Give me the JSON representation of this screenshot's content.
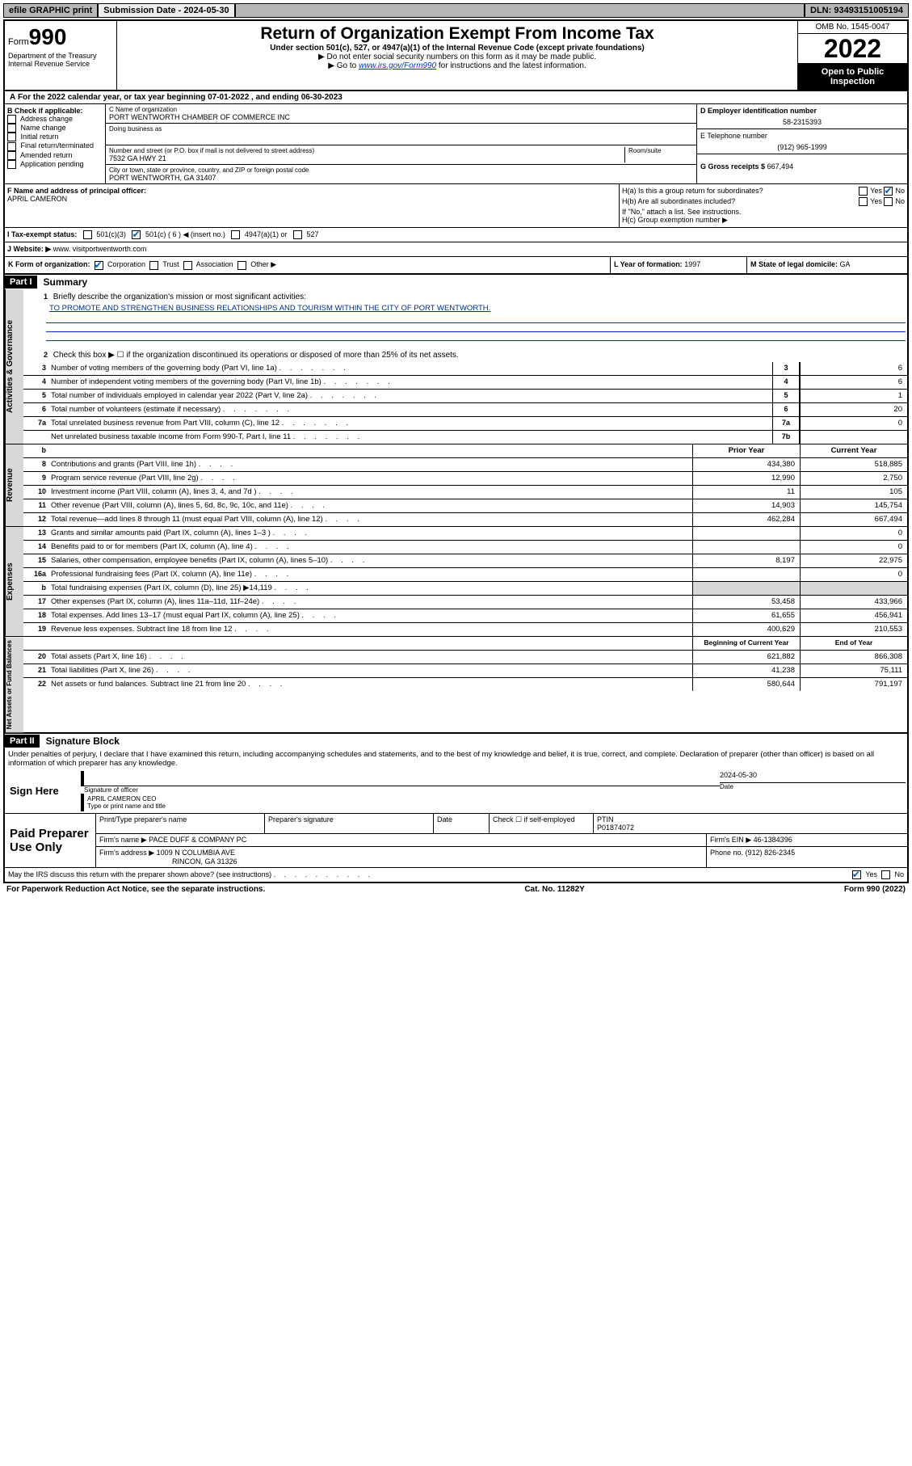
{
  "top": {
    "efile": "efile GRAPHIC print",
    "submission": "Submission Date - 2024-05-30",
    "dln": "DLN: 93493151005194"
  },
  "header": {
    "form_prefix": "Form",
    "form_num": "990",
    "title": "Return of Organization Exempt From Income Tax",
    "sub1": "Under section 501(c), 527, or 4947(a)(1) of the Internal Revenue Code (except private foundations)",
    "sub2": "▶ Do not enter social security numbers on this form as it may be made public.",
    "sub3_pre": "▶ Go to ",
    "sub3_link": "www.irs.gov/Form990",
    "sub3_post": " for instructions and the latest information.",
    "dept": "Department of the Treasury Internal Revenue Service",
    "omb": "OMB No. 1545-0047",
    "year": "2022",
    "open": "Open to Public Inspection"
  },
  "tax_year": "For the 2022 calendar year, or tax year beginning 07-01-2022  , and ending 06-30-2023",
  "sectionB": {
    "label": "B Check if applicable:",
    "items": [
      "Address change",
      "Name change",
      "Initial return",
      "Final return/terminated",
      "Amended return",
      "Application pending"
    ]
  },
  "sectionC": {
    "name_label": "C Name of organization",
    "name": "PORT WENTWORTH CHAMBER OF COMMERCE INC",
    "dba_label": "Doing business as",
    "addr_label": "Number and street (or P.O. box if mail is not delivered to street address)",
    "room_label": "Room/suite",
    "addr": "7532 GA HWY 21",
    "city_label": "City or town, state or province, country, and ZIP or foreign postal code",
    "city": "PORT WENTWORTH, GA  31407"
  },
  "sectionD": {
    "label": "D Employer identification number",
    "val": "58-2315393"
  },
  "sectionE": {
    "label": "E Telephone number",
    "val": "(912) 965-1999"
  },
  "sectionG": {
    "label": "G Gross receipts $",
    "val": "667,494"
  },
  "sectionF": {
    "label": "F Name and address of principal officer:",
    "name": "APRIL CAMERON"
  },
  "sectionH": {
    "a": "H(a)  Is this a group return for subordinates?",
    "b": "H(b)  Are all subordinates included?",
    "b_note": "If \"No,\" attach a list. See instructions.",
    "c": "H(c)  Group exemption number ▶",
    "yes": "Yes",
    "no": "No"
  },
  "sectionI": {
    "label": "I  Tax-exempt status:",
    "opts": [
      "501(c)(3)",
      "501(c) ( 6 ) ◀ (insert no.)",
      "4947(a)(1) or",
      "527"
    ]
  },
  "sectionJ": {
    "label": "J  Website: ▶",
    "val": "www. visitportwentworth.com"
  },
  "sectionK": {
    "label": "K Form of organization:",
    "opts": [
      "Corporation",
      "Trust",
      "Association",
      "Other ▶"
    ]
  },
  "sectionL": {
    "label": "L Year of formation:",
    "val": "1997"
  },
  "sectionM": {
    "label": "M State of legal domicile:",
    "val": "GA"
  },
  "part1": {
    "header": "Part I",
    "title": "Summary",
    "mission_label": "Briefly describe the organization's mission or most significant activities:",
    "mission": "TO PROMOTE AND STRENGTHEN BUSINESS RELATIONSHIPS AND TOURISM WITHIN THE CITY OF PORT WENTWORTH.",
    "line2": "Check this box ▶ ☐ if the organization discontinued its operations or disposed of more than 25% of its net assets.",
    "govLines": [
      {
        "n": "3",
        "t": "Number of voting members of the governing body (Part VI, line 1a)",
        "k": "3",
        "v": "6"
      },
      {
        "n": "4",
        "t": "Number of independent voting members of the governing body (Part VI, line 1b)",
        "k": "4",
        "v": "6"
      },
      {
        "n": "5",
        "t": "Total number of individuals employed in calendar year 2022 (Part V, line 2a)",
        "k": "5",
        "v": "1"
      },
      {
        "n": "6",
        "t": "Total number of volunteers (estimate if necessary)",
        "k": "6",
        "v": "20"
      },
      {
        "n": "7a",
        "t": "Total unrelated business revenue from Part VIII, column (C), line 12",
        "k": "7a",
        "v": "0"
      },
      {
        "n": "",
        "t": "Net unrelated business taxable income from Form 990-T, Part I, line 11",
        "k": "7b",
        "v": ""
      }
    ],
    "priorHeader": "Prior Year",
    "currentHeader": "Current Year",
    "revLabel": "Revenue",
    "revLines": [
      {
        "n": "8",
        "t": "Contributions and grants (Part VIII, line 1h)",
        "p": "434,380",
        "c": "518,885"
      },
      {
        "n": "9",
        "t": "Program service revenue (Part VIII, line 2g)",
        "p": "12,990",
        "c": "2,750"
      },
      {
        "n": "10",
        "t": "Investment income (Part VIII, column (A), lines 3, 4, and 7d )",
        "p": "11",
        "c": "105"
      },
      {
        "n": "11",
        "t": "Other revenue (Part VIII, column (A), lines 5, 6d, 8c, 9c, 10c, and 11e)",
        "p": "14,903",
        "c": "145,754"
      },
      {
        "n": "12",
        "t": "Total revenue—add lines 8 through 11 (must equal Part VIII, column (A), line 12)",
        "p": "462,284",
        "c": "667,494"
      }
    ],
    "expLabel": "Expenses",
    "expLines": [
      {
        "n": "13",
        "t": "Grants and similar amounts paid (Part IX, column (A), lines 1–3 )",
        "p": "",
        "c": "0"
      },
      {
        "n": "14",
        "t": "Benefits paid to or for members (Part IX, column (A), line 4)",
        "p": "",
        "c": "0"
      },
      {
        "n": "15",
        "t": "Salaries, other compensation, employee benefits (Part IX, column (A), lines 5–10)",
        "p": "8,197",
        "c": "22,975"
      },
      {
        "n": "16a",
        "t": "Professional fundraising fees (Part IX, column (A), line 11e)",
        "p": "",
        "c": "0"
      },
      {
        "n": "b",
        "t": "Total fundraising expenses (Part IX, column (D), line 25) ▶14,119",
        "p": "shade",
        "c": "shade"
      },
      {
        "n": "17",
        "t": "Other expenses (Part IX, column (A), lines 11a–11d, 11f–24e)",
        "p": "53,458",
        "c": "433,966"
      },
      {
        "n": "18",
        "t": "Total expenses. Add lines 13–17 (must equal Part IX, column (A), line 25)",
        "p": "61,655",
        "c": "456,941"
      },
      {
        "n": "19",
        "t": "Revenue less expenses. Subtract line 18 from line 12",
        "p": "400,629",
        "c": "210,553"
      }
    ],
    "naLabel": "Net Assets or Fund Balances",
    "begHeader": "Beginning of Current Year",
    "endHeader": "End of Year",
    "naLines": [
      {
        "n": "20",
        "t": "Total assets (Part X, line 16)",
        "p": "621,882",
        "c": "866,308"
      },
      {
        "n": "21",
        "t": "Total liabilities (Part X, line 26)",
        "p": "41,238",
        "c": "75,111"
      },
      {
        "n": "22",
        "t": "Net assets or fund balances. Subtract line 21 from line 20",
        "p": "580,644",
        "c": "791,197"
      }
    ],
    "govLabel": "Activities & Governance"
  },
  "part2": {
    "header": "Part II",
    "title": "Signature Block",
    "disclaimer": "Under penalties of perjury, I declare that I have examined this return, including accompanying schedules and statements, and to the best of my knowledge and belief, it is true, correct, and complete. Declaration of preparer (other than officer) is based on all information of which preparer has any knowledge.",
    "sign_here": "Sign Here",
    "sig_officer": "Signature of officer",
    "date_label": "Date",
    "date_val": "2024-05-30",
    "officer_name": "APRIL CAMERON CEO",
    "type_label": "Type or print name and title",
    "paid": "Paid Preparer Use Only",
    "prep_name_label": "Print/Type preparer's name",
    "prep_sig_label": "Preparer's signature",
    "check_if": "Check ☐ if self-employed",
    "ptin_label": "PTIN",
    "ptin": "P01874072",
    "firm_name_label": "Firm's name   ▶",
    "firm_name": "PACE DUFF & COMPANY PC",
    "firm_ein_label": "Firm's EIN ▶",
    "firm_ein": "46-1384396",
    "firm_addr_label": "Firm's address ▶",
    "firm_addr1": "1009 N COLUMBIA AVE",
    "firm_addr2": "RINCON, GA 31326",
    "phone_label": "Phone no.",
    "phone": "(912) 826-2345",
    "may_irs": "May the IRS discuss this return with the preparer shown above? (see instructions)",
    "yes": "Yes",
    "no": "No"
  },
  "footer": {
    "left": "For Paperwork Reduction Act Notice, see the separate instructions.",
    "mid": "Cat. No. 11282Y",
    "right": "Form 990 (2022)"
  }
}
